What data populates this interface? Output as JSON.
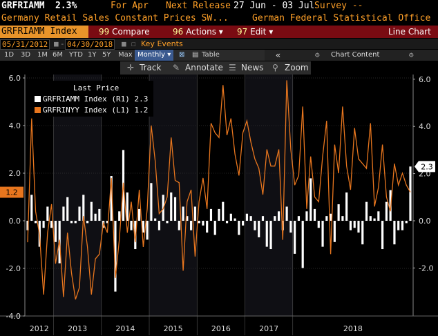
{
  "header": {
    "ticker": "GRFRIAMM",
    "value": "2.3%",
    "for_label": "For Apr",
    "next_release_label": "Next Release",
    "next_release_dates": "27 Jun - 03 Jul",
    "survey_label": "Survey --",
    "title": "Germany Retail Sales Constant Prices SW...",
    "source": "German Federal Statistical Office"
  },
  "toolbar": {
    "ticker_index": "GRFRIAMM Index",
    "compare": "Compare",
    "actions": "Actions",
    "edit": "Edit",
    "chart_type": "Line Chart",
    "compare_num": "99",
    "actions_num": "96",
    "edit_num": "97"
  },
  "date_range": {
    "start": "05/31/2012",
    "end": "04/30/2018",
    "key_events": "Key Events"
  },
  "periods": [
    "1D",
    "3D",
    "1M",
    "6M",
    "YTD",
    "1Y",
    "5Y",
    "Max"
  ],
  "frequency": "Monthly",
  "table_label": "Table",
  "chart_content_label": "Chart Content",
  "chart_tools": {
    "track": "Track",
    "annotate": "Annotate",
    "news": "News",
    "zoom": "Zoom"
  },
  "legend": {
    "title": "Last Price",
    "series1": "GRFRIAMM Index  (R1) 2.3",
    "series2": "GRFRINYY Index  (L1) 1.2"
  },
  "colors": {
    "line": "#e8761e",
    "bars": "#ffffff",
    "toolbar": "#7a0b12",
    "accent": "#ffa028"
  },
  "chart_data": {
    "type": "bar+line",
    "x_labels": [
      "2012",
      "2013",
      "2014",
      "2015",
      "2016",
      "2017",
      "2018"
    ],
    "left_ticks": [
      "6.0",
      "4.0",
      "2.0",
      "0.0",
      "-2.0",
      "-4.0"
    ],
    "right_ticks": [
      "6.0",
      "4.0",
      "2.0",
      "0.0",
      "-2.0"
    ],
    "left_ylim": [
      -4,
      6
    ],
    "right_ylim": [
      -4,
      6
    ],
    "last_left_label": "1.2",
    "last_right_label": "2.3",
    "series": [
      {
        "name": "GRFRIAMM Index (R1)",
        "axis": "right",
        "style": "bar",
        "values": [
          -0.4,
          1.1,
          -0.1,
          -1.1,
          -0.3,
          0.6,
          -0.3,
          -0.9,
          -1.8,
          0.6,
          1.0,
          -0.1,
          -0.1,
          0.6,
          1.1,
          -0.1,
          0.8,
          0.3,
          0.5,
          -0.3,
          -0.1,
          1.9,
          -3.0,
          0.4,
          3.0,
          1.2,
          -0.4,
          -1.2,
          0.5,
          -0.5,
          -0.8,
          1.6,
          0.1,
          -0.4,
          1.1,
          -0.1,
          1.2,
          1.0,
          -0.4,
          0.6,
          0.2,
          -0.4,
          0.6,
          -0.1,
          -0.2,
          -0.5,
          0.5,
          -0.6,
          0.5,
          0.8,
          -0.1,
          0.3,
          0.1,
          -0.6,
          -0.2,
          0.3,
          0.2,
          -0.4,
          -0.7,
          0.2,
          -1.1,
          -1.2,
          0.2,
          0.4,
          -0.4,
          0.6,
          -0.5,
          -1.4,
          0.2,
          -2.0,
          0.4,
          1.8,
          0.5,
          -0.3,
          -1.1,
          0.2,
          0.3,
          -0.9,
          0.7,
          0.2,
          1.2,
          -0.4,
          -0.3,
          -0.5,
          -1.0,
          0.8,
          0.2,
          0.1,
          0.4,
          -1.2,
          0.8,
          1.3,
          -1.0,
          -0.4,
          -0.4,
          -0.1,
          2.3
        ]
      },
      {
        "name": "GRFRINYY Index (L1)",
        "axis": "left",
        "style": "line",
        "values": [
          -0.9,
          4.3,
          0.4,
          -0.6,
          -3.1,
          -0.5,
          0.7,
          -1.8,
          -0.8,
          -3.2,
          -0.5,
          -2.2,
          -3.3,
          -2.8,
          0.2,
          -1.1,
          -3.1,
          -1.6,
          -1.4,
          -0.1,
          -0.5,
          1.8,
          -2.4,
          -0.8,
          1.6,
          -0.5,
          0.8,
          -0.9,
          1.3,
          -1.1,
          0.5,
          4.0,
          2.5,
          0.3,
          0.5,
          1.0,
          3.5,
          1.7,
          1.6,
          -2.1,
          0.8,
          1.3,
          -1.5,
          0.8,
          1.8,
          0.5,
          4.1,
          3.7,
          3.5,
          5.7,
          3.6,
          4.3,
          2.8,
          1.9,
          3.7,
          4.2,
          3.3,
          2.6,
          2.2,
          1.1,
          3.0,
          2.3,
          2.3,
          3.0,
          -0.8,
          5.9,
          3.0,
          1.5,
          1.9,
          4.8,
          0.5,
          2.7,
          1.0,
          0.8,
          2.7,
          4.2,
          -1.4,
          3.2,
          2.0,
          4.8,
          2.3,
          1.3,
          3.9,
          2.6,
          2.4,
          2.2,
          4.1,
          0.6,
          1.4,
          3.2,
          1.0,
          0.4,
          2.4,
          1.5,
          2.0,
          1.5,
          1.2
        ]
      }
    ]
  }
}
